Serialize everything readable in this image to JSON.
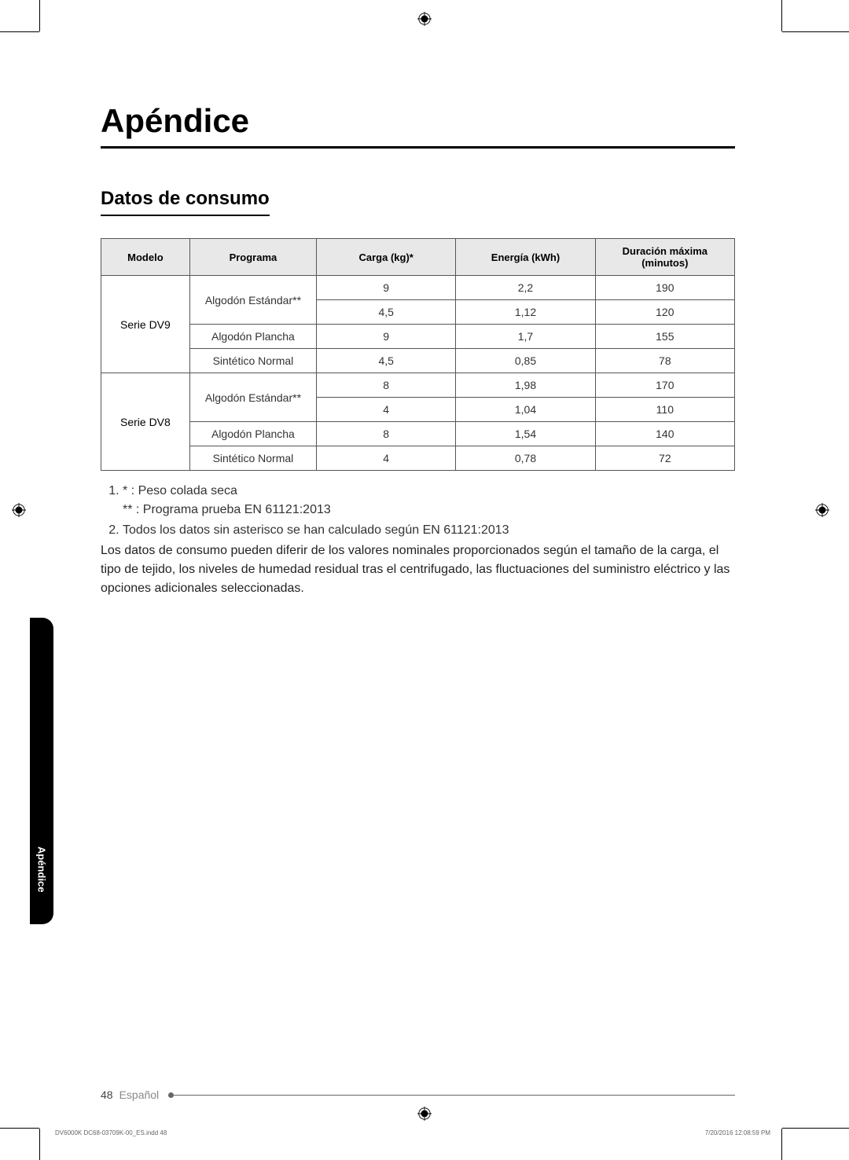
{
  "title": "Apéndice",
  "section_title": "Datos de consumo",
  "table": {
    "headers": [
      "Modelo",
      "Programa",
      "Carga (kg)*",
      "Energía (kWh)",
      "Duración máxima (minutos)"
    ],
    "model_groups": [
      {
        "model": "Serie DV9",
        "programs": [
          {
            "program": "Algodón Estándar**",
            "rows": [
              {
                "carga": "9",
                "energia": "2,2",
                "duracion": "190"
              },
              {
                "carga": "4,5",
                "energia": "1,12",
                "duracion": "120"
              }
            ]
          },
          {
            "program": "Algodón Plancha",
            "rows": [
              {
                "carga": "9",
                "energia": "1,7",
                "duracion": "155"
              }
            ]
          },
          {
            "program": "Sintético Normal",
            "rows": [
              {
                "carga": "4,5",
                "energia": "0,85",
                "duracion": "78"
              }
            ]
          }
        ]
      },
      {
        "model": "Serie DV8",
        "programs": [
          {
            "program": "Algodón Estándar**",
            "rows": [
              {
                "carga": "8",
                "energia": "1,98",
                "duracion": "170"
              },
              {
                "carga": "4",
                "energia": "1,04",
                "duracion": "110"
              }
            ]
          },
          {
            "program": "Algodón Plancha",
            "rows": [
              {
                "carga": "8",
                "energia": "1,54",
                "duracion": "140"
              }
            ]
          },
          {
            "program": "Sintético Normal",
            "rows": [
              {
                "carga": "4",
                "energia": "0,78",
                "duracion": "72"
              }
            ]
          }
        ]
      }
    ]
  },
  "notes": {
    "note1a": "* : Peso colada seca",
    "note1b": "** : Programa prueba EN 61121:2013",
    "note2": "Todos los datos sin asterisco se han calculado según EN 61121:2013"
  },
  "paragraph": "Los datos de consumo pueden diferir de los valores nominales proporcionados según el tamaño de la carga, el tipo de tejido, los niveles de humedad residual tras el centrifugado, las fluctuaciones del suministro eléctrico y las opciones adicionales seleccionadas.",
  "side_tab": "Apéndice",
  "footer": {
    "page": "48",
    "lang": "Español"
  },
  "imprint": {
    "left": "DV6000K DC68-03709K-00_ES.indd   48",
    "right": "7/20/2016   12:08:59 PM"
  }
}
